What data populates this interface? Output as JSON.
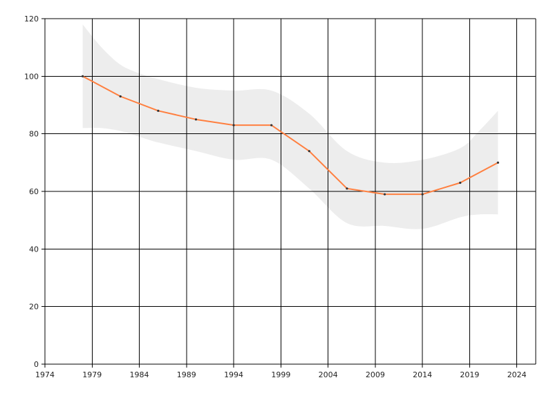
{
  "chart_data": {
    "type": "line",
    "title": "",
    "xlabel": "",
    "ylabel": "",
    "xlim": [
      1974,
      2026
    ],
    "ylim": [
      0,
      120
    ],
    "x_ticks": [
      1974,
      1979,
      1984,
      1989,
      1994,
      1999,
      2004,
      2009,
      2014,
      2019,
      2024
    ],
    "y_ticks": [
      0,
      20,
      40,
      60,
      80,
      100,
      120
    ],
    "grid": true,
    "legend": "none",
    "series": [
      {
        "color": "#ff7f3f",
        "x": [
          1978,
          1982,
          1986,
          1990,
          1994,
          1998,
          2002,
          2006,
          2010,
          2014,
          2018,
          2022
        ],
        "y": [
          100,
          93,
          88,
          85,
          83,
          83,
          74,
          61,
          59,
          59,
          63,
          70
        ]
      }
    ],
    "band": {
      "color": "#ededed",
      "x": [
        1978,
        1980,
        1982,
        1984,
        1986,
        1990,
        1994,
        1998,
        2002,
        2006,
        2010,
        2014,
        2018,
        2020,
        2022
      ],
      "upper": [
        118,
        110,
        104,
        101,
        99,
        96,
        95,
        95,
        87,
        74,
        70,
        71,
        75,
        81,
        88
      ],
      "lower": [
        82,
        82,
        81,
        79,
        77,
        74,
        71,
        71,
        61,
        49,
        48,
        47,
        51,
        52,
        52
      ]
    }
  }
}
